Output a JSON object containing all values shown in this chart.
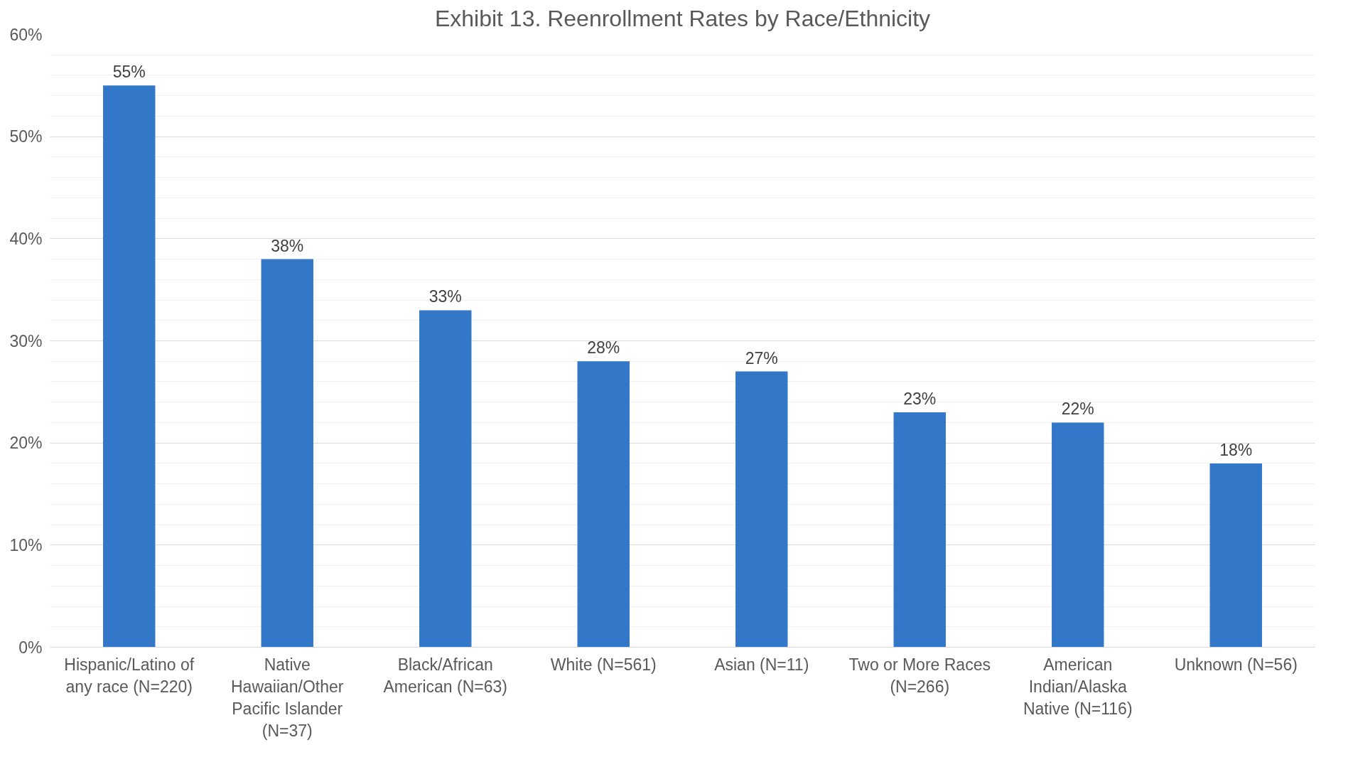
{
  "chart_data": {
    "type": "bar",
    "title": "Exhibit 13. Reenrollment Rates by Race/Ethnicity",
    "categories": [
      "Hispanic/Latino of any race (N=220)",
      "Native Hawaiian/Other Pacific Islander (N=37)",
      "Black/African American (N=63)",
      "White (N=561)",
      "Asian (N=11)",
      "Two or More Races (N=266)",
      "American Indian/Alaska Native (N=116)",
      "Unknown (N=56)"
    ],
    "values": [
      55,
      38,
      33,
      28,
      27,
      23,
      22,
      18
    ],
    "value_labels": [
      "55%",
      "38%",
      "33%",
      "28%",
      "27%",
      "23%",
      "22%",
      "18%"
    ],
    "color": "#3277c8",
    "ylim": [
      0,
      60
    ],
    "yticks": [
      {
        "value": 0,
        "label": "0%"
      },
      {
        "value": 10,
        "label": "10%"
      },
      {
        "value": 20,
        "label": "20%"
      },
      {
        "value": 30,
        "label": "30%"
      },
      {
        "value": 40,
        "label": "40%"
      },
      {
        "value": 50,
        "label": "50%"
      },
      {
        "value": 60,
        "label": "60%"
      }
    ],
    "grid": "y"
  }
}
